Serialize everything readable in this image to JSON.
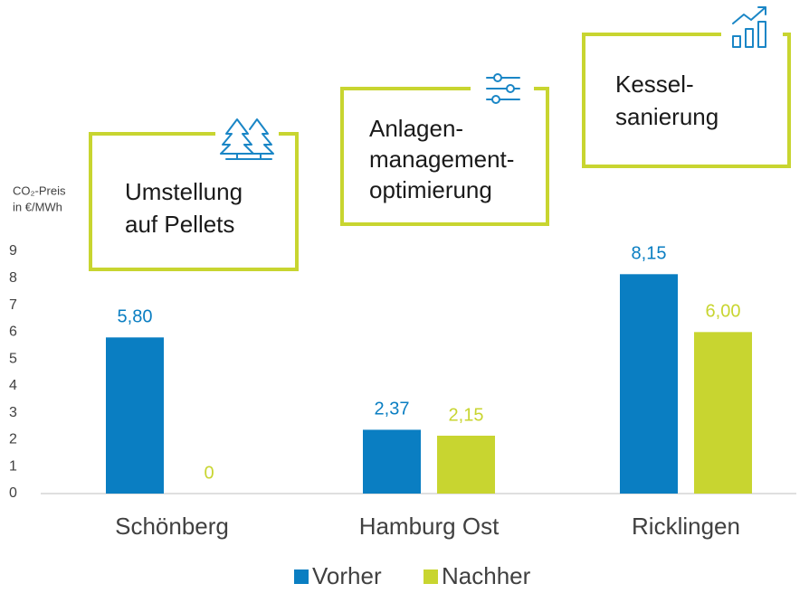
{
  "chart_data": {
    "type": "bar",
    "y_axis_label": [
      "CO₂-Preis",
      "in €/MWh"
    ],
    "categories": [
      "Schönberg",
      "Hamburg Ost",
      "Ricklingen"
    ],
    "series": [
      {
        "name": "Vorher",
        "color": "#0a7ec2",
        "values": [
          5.8,
          2.37,
          8.15
        ],
        "value_labels": [
          "5,80",
          "2,37",
          "8,15"
        ]
      },
      {
        "name": "Nachher",
        "color": "#c8d530",
        "values": [
          0,
          2.15,
          6.0
        ],
        "value_labels": [
          "0",
          "2,15",
          "6,00"
        ]
      }
    ],
    "ylim": [
      0,
      9
    ],
    "yticks": [
      0,
      1,
      2,
      3,
      4,
      5,
      6,
      7,
      8,
      9
    ],
    "grid": false,
    "annotations": [
      {
        "lines": [
          "Umstellung",
          "auf Pellets"
        ]
      },
      {
        "lines": [
          "Anlagen-",
          "management-",
          "optimierung"
        ]
      },
      {
        "lines": [
          "Kessel-",
          "sanierung"
        ]
      }
    ],
    "legend": "bottom"
  }
}
